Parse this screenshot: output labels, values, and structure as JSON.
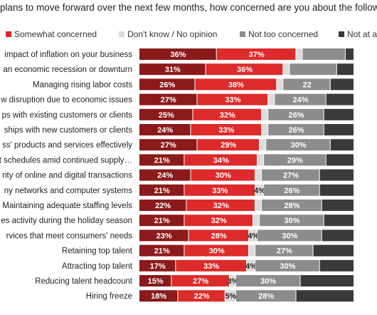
{
  "chart_data": {
    "type": "bar",
    "orientation": "horizontal",
    "stacked": true,
    "title": "plans to move forward over the next few months, how concerned are you about the follow",
    "categories": [
      "impact of inflation on your business",
      "an economic recession or downturn",
      "Managing rising labor costs",
      "w disruption due to economic issues",
      "ps with existing customers or clients",
      "ships with new customers or clients",
      "ss' products and services effectively",
      "nt schedules amid continued supply…",
      "rity of online and digital transactions",
      "ny networks and computer systems",
      "Maintaining adequate staffing levels",
      "es activity during the holiday season",
      "rvices that meet consumers' needs",
      "Retaining top talent",
      "Attracting top talent",
      "Reducing talent headcount",
      "Hiring freeze"
    ],
    "series": [
      {
        "name": "",
        "color": "#8b1a1a",
        "values": [
          36,
          31,
          26,
          27,
          25,
          24,
          27,
          21,
          24,
          21,
          22,
          21,
          23,
          21,
          17,
          15,
          18
        ]
      },
      {
        "name": "Somewhat concerned",
        "color": "#dd2a2a",
        "values": [
          37,
          36,
          38,
          33,
          32,
          33,
          29,
          34,
          30,
          33,
          32,
          32,
          28,
          30,
          33,
          27,
          22
        ]
      },
      {
        "name": "Don't know / No opinion",
        "color": "#dcdcdc",
        "values": [
          3,
          3,
          3,
          3,
          3,
          3,
          3,
          3,
          3,
          4,
          3,
          3,
          4,
          3,
          4,
          3,
          5
        ]
      },
      {
        "name": "Not too concerned",
        "color": "#8c8c8c",
        "values": [
          20,
          22,
          22,
          24,
          26,
          26,
          30,
          29,
          27,
          26,
          28,
          30,
          30,
          27,
          30,
          30,
          28
        ]
      },
      {
        "name": "Not at all",
        "color": "#3a3a3a",
        "values": [
          4,
          8,
          11,
          13,
          14,
          14,
          11,
          13,
          16,
          16,
          15,
          14,
          15,
          19,
          16,
          25,
          27
        ]
      }
    ],
    "labels": [
      [
        "36%",
        "37%",
        "",
        "",
        ""
      ],
      [
        "31%",
        "36%",
        "",
        "",
        ""
      ],
      [
        "26%",
        "38%",
        "",
        "22",
        ""
      ],
      [
        "27%",
        "33%",
        "",
        "24%",
        ""
      ],
      [
        "25%",
        "32%",
        "",
        "26%",
        ""
      ],
      [
        "24%",
        "33%",
        "",
        "26%",
        ""
      ],
      [
        "27%",
        "29%",
        "",
        "30%",
        ""
      ],
      [
        "21%",
        "34%",
        "",
        "29%",
        ""
      ],
      [
        "24%",
        "30%",
        "",
        "27%",
        ""
      ],
      [
        "21%",
        "33%",
        "4%",
        "26%",
        ""
      ],
      [
        "22%",
        "32%",
        "",
        "28%",
        ""
      ],
      [
        "21%",
        "32%",
        "",
        "30%",
        ""
      ],
      [
        "23%",
        "28%",
        "4%",
        "30%",
        ""
      ],
      [
        "21%",
        "30%",
        "",
        "27%",
        ""
      ],
      [
        "17%",
        "33%",
        "4%",
        "30%",
        ""
      ],
      [
        "15%",
        "27%",
        "3%",
        "30%",
        ""
      ],
      [
        "18%",
        "22%",
        "5%",
        "28%",
        ""
      ]
    ],
    "xlim": [
      0,
      100
    ],
    "legend_position": "top",
    "grid": false
  }
}
